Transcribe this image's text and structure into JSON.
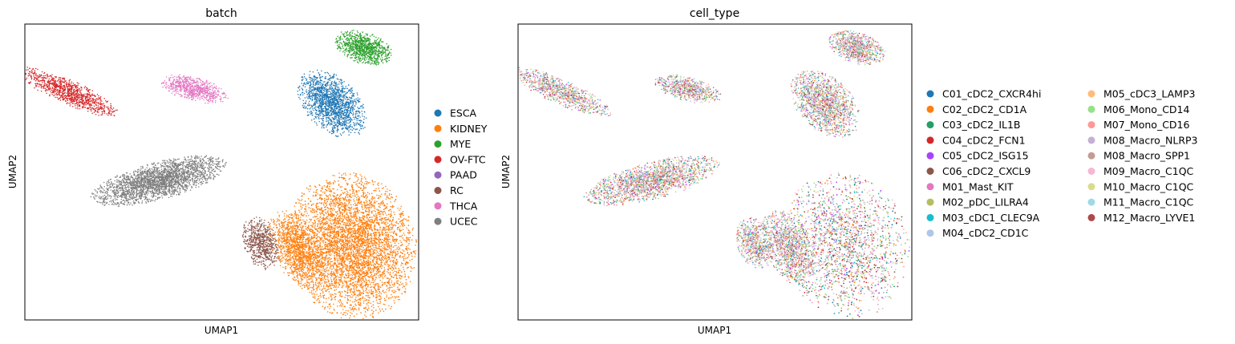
{
  "chart_data": [
    {
      "type": "scatter",
      "title": "batch",
      "xlabel": "UMAP1",
      "ylabel": "UMAP2",
      "grid": false,
      "ticks": false,
      "legend": "right",
      "series": [
        {
          "name": "ESCA",
          "color": "#1f77b4",
          "clusters": [
            {
              "cx": 0.78,
              "cy": 0.73,
              "rx": 0.065,
              "ry": 0.11,
              "rot": 0.5,
              "n": 1600
            }
          ]
        },
        {
          "name": "KIDNEY",
          "color": "#ff7f0e",
          "clusters": [
            {
              "cx": 0.83,
              "cy": 0.25,
              "rx": 0.145,
              "ry": 0.22,
              "rot": 0.1,
              "n": 6500
            },
            {
              "cx": 0.69,
              "cy": 0.24,
              "rx": 0.055,
              "ry": 0.12,
              "rot": 0.3,
              "n": 1200
            }
          ]
        },
        {
          "name": "MYE",
          "color": "#2ca02c",
          "clusters": [
            {
              "cx": 0.86,
              "cy": 0.92,
              "rx": 0.07,
              "ry": 0.045,
              "rot": -0.55,
              "n": 900
            }
          ]
        },
        {
          "name": "OV-FTC",
          "color": "#d62728",
          "clusters": [
            {
              "cx": 0.11,
              "cy": 0.77,
              "rx": 0.13,
              "ry": 0.035,
              "rot": -0.55,
              "n": 1000
            }
          ]
        },
        {
          "name": "PAAD",
          "color": "#9467bd",
          "clusters": []
        },
        {
          "name": "RC",
          "color": "#8c564b",
          "clusters": [
            {
              "cx": 0.6,
              "cy": 0.26,
              "rx": 0.04,
              "ry": 0.08,
              "rot": 0.2,
              "n": 650
            }
          ]
        },
        {
          "name": "THCA",
          "color": "#e377c2",
          "clusters": [
            {
              "cx": 0.43,
              "cy": 0.78,
              "rx": 0.08,
              "ry": 0.035,
              "rot": -0.35,
              "n": 700
            }
          ]
        },
        {
          "name": "UCEC",
          "color": "#7f7f7f",
          "clusters": [
            {
              "cx": 0.34,
              "cy": 0.47,
              "rx": 0.16,
              "ry": 0.055,
              "rot": 0.35,
              "n": 2600
            }
          ]
        }
      ]
    },
    {
      "type": "scatter",
      "title": "cell_type",
      "xlabel": "UMAP1",
      "ylabel": "UMAP2",
      "grid": false,
      "ticks": false,
      "legend": "right",
      "legend_columns": 2,
      "series": [
        {
          "name": "C01_cDC2_CXCR4hi",
          "color": "#1f77b4",
          "share": 0.05
        },
        {
          "name": "C02_cDC2_CD1A",
          "color": "#ff7f0e",
          "share": 0.04
        },
        {
          "name": "C03_cDC2_IL1B",
          "color": "#279e68",
          "share": 0.05
        },
        {
          "name": "C04_cDC2_FCN1",
          "color": "#d62728",
          "share": 0.05
        },
        {
          "name": "C05_cDC2_ISG15",
          "color": "#aa40fc",
          "share": 0.04
        },
        {
          "name": "C06_cDC2_CXCL9",
          "color": "#8c564b",
          "share": 0.04
        },
        {
          "name": "M01_Mast_KIT",
          "color": "#e377c2",
          "share": 0.06
        },
        {
          "name": "M02_pDC_LILRA4",
          "color": "#b5bd61",
          "share": 0.05
        },
        {
          "name": "M03_cDC1_CLEC9A",
          "color": "#17becf",
          "share": 0.04
        },
        {
          "name": "M04_cDC2_CD1C",
          "color": "#aec7e8",
          "share": 0.1
        },
        {
          "name": "M05_cDC3_LAMP3",
          "color": "#ffbb78",
          "share": 0.04
        },
        {
          "name": "M06_Mono_CD14",
          "color": "#98df8a",
          "share": 0.08
        },
        {
          "name": "M07_Mono_CD16",
          "color": "#ff9896",
          "share": 0.1
        },
        {
          "name": "M08_Macro_NLRP3",
          "color": "#c5b0d5",
          "share": 0.05
        },
        {
          "name": "M08_Macro_SPP1",
          "color": "#c49c94",
          "share": 0.06
        },
        {
          "name": "M09_Macro_C1QC",
          "color": "#f7b6d2",
          "share": 0.07
        },
        {
          "name": "M10_Macro_C1QC",
          "color": "#dbdb8d",
          "share": 0.04
        },
        {
          "name": "M11_Macro_C1QC",
          "color": "#9edae5",
          "share": 0.03
        },
        {
          "name": "M12_Macro_LYVE1",
          "color": "#ad494a",
          "share": 0.04
        }
      ]
    }
  ]
}
